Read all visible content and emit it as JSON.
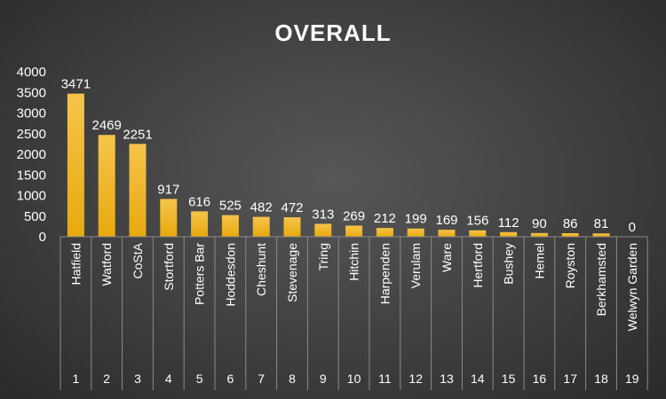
{
  "chart_data": {
    "type": "bar",
    "title": "OVERALL",
    "xlabel": "",
    "ylabel": "",
    "ylim": [
      0,
      4000
    ],
    "yticks": [
      0,
      500,
      1000,
      1500,
      2000,
      2500,
      3000,
      3500,
      4000
    ],
    "grid": false,
    "legend": "none",
    "bar_color": "#f2b82a",
    "categories": [
      "Hatfield",
      "Watford",
      "CoStA",
      "Stortford",
      "Potters Bar",
      "Hoddesdon",
      "Cheshunt",
      "Stevenage",
      "Tring",
      "Hitchin",
      "Harpenden",
      "Verulam",
      "Ware",
      "Hertford",
      "Bushey",
      "Hemel",
      "Royston",
      "Berkhamsted",
      "Welwyn Garden"
    ],
    "ranks": [
      "1",
      "2",
      "3",
      "4",
      "5",
      "6",
      "7",
      "8",
      "9",
      "10",
      "11",
      "12",
      "13",
      "14",
      "15",
      "16",
      "17",
      "18",
      "19"
    ],
    "values": [
      3471,
      2469,
      2251,
      917,
      616,
      525,
      482,
      472,
      313,
      269,
      212,
      199,
      169,
      156,
      112,
      90,
      86,
      81,
      0
    ]
  }
}
